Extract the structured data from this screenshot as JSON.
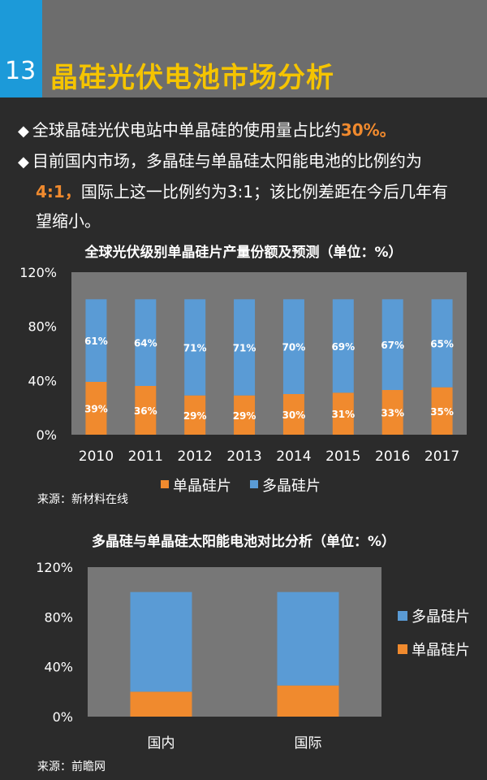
{
  "header": {
    "number": "13",
    "title": "晶硅光伏电池市场分析"
  },
  "bullets": {
    "b1_text": "全球晶硅光伏电站中单晶硅的使用量占比约",
    "b1_highlight": "30%。",
    "b2_line1": "目前国内市场，多晶硅与单晶硅太阳能电池的比例约为",
    "b2_highlight": "4:1，",
    "b2_rest": "国际上这一比例约为3:1；该比例差距在今后几年有",
    "b2_line3": "望缩小。"
  },
  "colors": {
    "single": "#f08a2e",
    "multi": "#5a9bd5",
    "plot_bg": "#777777",
    "accent": "#1c9ad9",
    "title": "#f5c400"
  },
  "chart_data": [
    {
      "type": "bar",
      "stacked": true,
      "title": "全球光伏级别单晶硅片产量份额及预测（单位：%）",
      "categories": [
        "2010",
        "2011",
        "2012",
        "2013",
        "2014",
        "2015",
        "2016",
        "2017"
      ],
      "series": [
        {
          "name": "单晶硅片",
          "values": [
            39,
            36,
            29,
            29,
            30,
            31,
            33,
            35
          ],
          "labels": [
            "39%",
            "36%",
            "29%",
            "29%",
            "30%",
            "31%",
            "33%",
            "35%"
          ]
        },
        {
          "name": "多晶硅片",
          "values": [
            61,
            64,
            71,
            71,
            70,
            69,
            67,
            65
          ],
          "labels": [
            "61%",
            "64%",
            "71%",
            "71%",
            "70%",
            "69%",
            "67%",
            "65%"
          ]
        }
      ],
      "ylim": [
        0,
        120
      ],
      "yticks": [
        "0%",
        "40%",
        "80%",
        "120%"
      ],
      "legend": "bottom",
      "source": "来源：新材料在线"
    },
    {
      "type": "bar",
      "stacked": true,
      "title": "多晶硅与单晶硅太阳能电池对比分析（单位：%）",
      "categories": [
        "国内",
        "国际"
      ],
      "series": [
        {
          "name": "单晶硅片",
          "values": [
            20,
            25
          ]
        },
        {
          "name": "多晶硅片",
          "values": [
            80,
            75
          ]
        }
      ],
      "ylim": [
        0,
        120
      ],
      "yticks": [
        "0%",
        "40%",
        "80%",
        "120%"
      ],
      "legend": "right",
      "legend_order": [
        "多晶硅片",
        "单晶硅片"
      ],
      "source": "来源：前瞻网"
    }
  ]
}
